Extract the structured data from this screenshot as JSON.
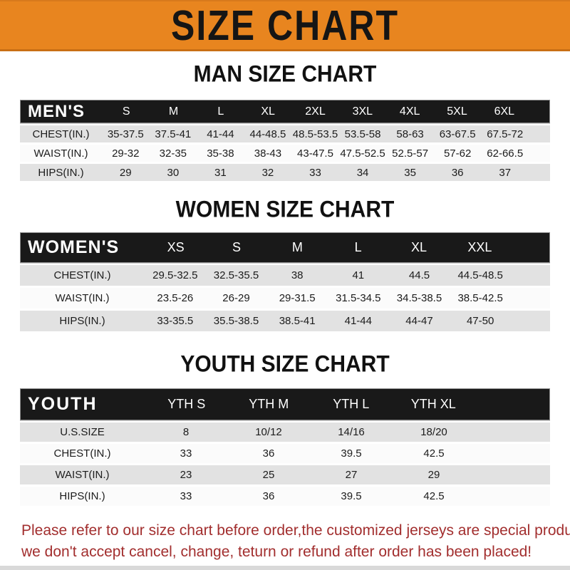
{
  "banner": {
    "title": "SIZE CHART"
  },
  "tables": [
    {
      "name": "men",
      "title": "MAN SIZE CHART",
      "header_label": "MEN'S",
      "columns": [
        "S",
        "M",
        "L",
        "XL",
        "2XL",
        "3XL",
        "4XL",
        "5XL",
        "6XL"
      ],
      "rows": [
        {
          "label": "CHEST(IN.)",
          "values": [
            "35-37.5",
            "37.5-41",
            "41-44",
            "44-48.5",
            "48.5-53.5",
            "53.5-58",
            "58-63",
            "63-67.5",
            "67.5-72"
          ]
        },
        {
          "label": "WAIST(IN.)",
          "values": [
            "29-32",
            "32-35",
            "35-38",
            "38-43",
            "43-47.5",
            "47.5-52.5",
            "52.5-57",
            "57-62",
            "62-66.5"
          ]
        },
        {
          "label": "HIPS(IN.)",
          "values": [
            "29",
            "30",
            "31",
            "32",
            "33",
            "34",
            "35",
            "36",
            "37"
          ]
        }
      ]
    },
    {
      "name": "women",
      "title": "WOMEN SIZE CHART",
      "header_label": "WOMEN'S",
      "columns": [
        "XS",
        "S",
        "M",
        "L",
        "XL",
        "XXL"
      ],
      "rows": [
        {
          "label": "CHEST(IN.)",
          "values": [
            "29.5-32.5",
            "32.5-35.5",
            "38",
            "41",
            "44.5",
            "44.5-48.5"
          ]
        },
        {
          "label": "WAIST(IN.)",
          "values": [
            "23.5-26",
            "26-29",
            "29-31.5",
            "31.5-34.5",
            "34.5-38.5",
            "38.5-42.5"
          ]
        },
        {
          "label": "HIPS(IN.)",
          "values": [
            "33-35.5",
            "35.5-38.5",
            "38.5-41",
            "41-44",
            "44-47",
            "47-50"
          ]
        }
      ]
    },
    {
      "name": "youth",
      "title": "YOUTH SIZE CHART",
      "header_label": "YOUTH",
      "columns": [
        "YTH S",
        "YTH M",
        "YTH L",
        "YTH XL"
      ],
      "rows": [
        {
          "label": "U.S.SIZE",
          "values": [
            "8",
            "10/12",
            "14/16",
            "18/20"
          ]
        },
        {
          "label": "CHEST(IN.)",
          "values": [
            "33",
            "36",
            "39.5",
            "42.5"
          ]
        },
        {
          "label": "WAIST(IN.)",
          "values": [
            "23",
            "25",
            "27",
            "29"
          ]
        },
        {
          "label": "HIPS(IN.)",
          "values": [
            "33",
            "36",
            "39.5",
            "42.5"
          ]
        }
      ]
    }
  ],
  "footer": {
    "line1": "Please refer to our size chart before order,the customized jerseys are special products,",
    "line2": "we don't accept cancel, change, teturn or refund after order has been placed!"
  },
  "colors": {
    "banner_bg": "#E8851F",
    "table_header_bg": "#191919",
    "row_gray": "#E2E2E2",
    "row_white": "#FBFBFB",
    "footer_text": "#A22E2E"
  }
}
